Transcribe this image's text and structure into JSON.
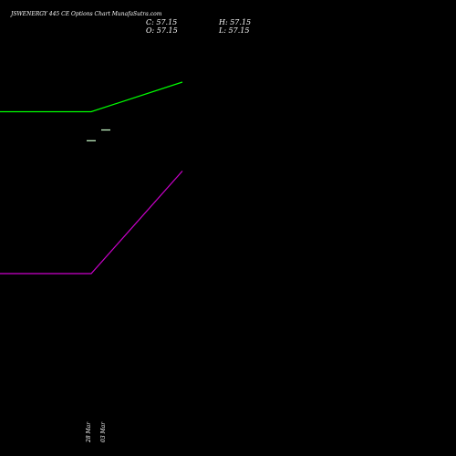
{
  "title": "JSWENERGY 445 CE Options  Chart MunafaSutra.com",
  "ohlc": {
    "close": "C: 57.15",
    "open": "O: 57.15",
    "high": "H: 57.15",
    "low": "L: 57.15"
  },
  "colors": {
    "background": "#000000",
    "text": "#ffffff",
    "series_green": "#00ff00",
    "series_magenta": "#cc00cc",
    "candle": "#ccffcc"
  },
  "chart_data": {
    "type": "line",
    "title": "JSWENERGY 445 CE Options  Chart MunafaSutra.com",
    "xlabel": "",
    "ylabel": "",
    "grid": false,
    "categories": [
      "",
      "28 Mar",
      "03 Mar"
    ],
    "series": [
      {
        "color": "#00ff00",
        "values": [
          63.5,
          63.5,
          70.0
        ]
      },
      {
        "color": "#cc00cc",
        "values": [
          28.0,
          28.0,
          50.5
        ]
      }
    ],
    "candles": [
      {
        "label": "28 Mar",
        "open": 57.15,
        "high": 57.15,
        "low": 57.15,
        "close": 57.15
      },
      {
        "label": "03 Mar",
        "open": 59.5,
        "high": 59.5,
        "low": 59.5,
        "close": 59.5
      }
    ],
    "ylim": [
      0,
      80
    ]
  }
}
